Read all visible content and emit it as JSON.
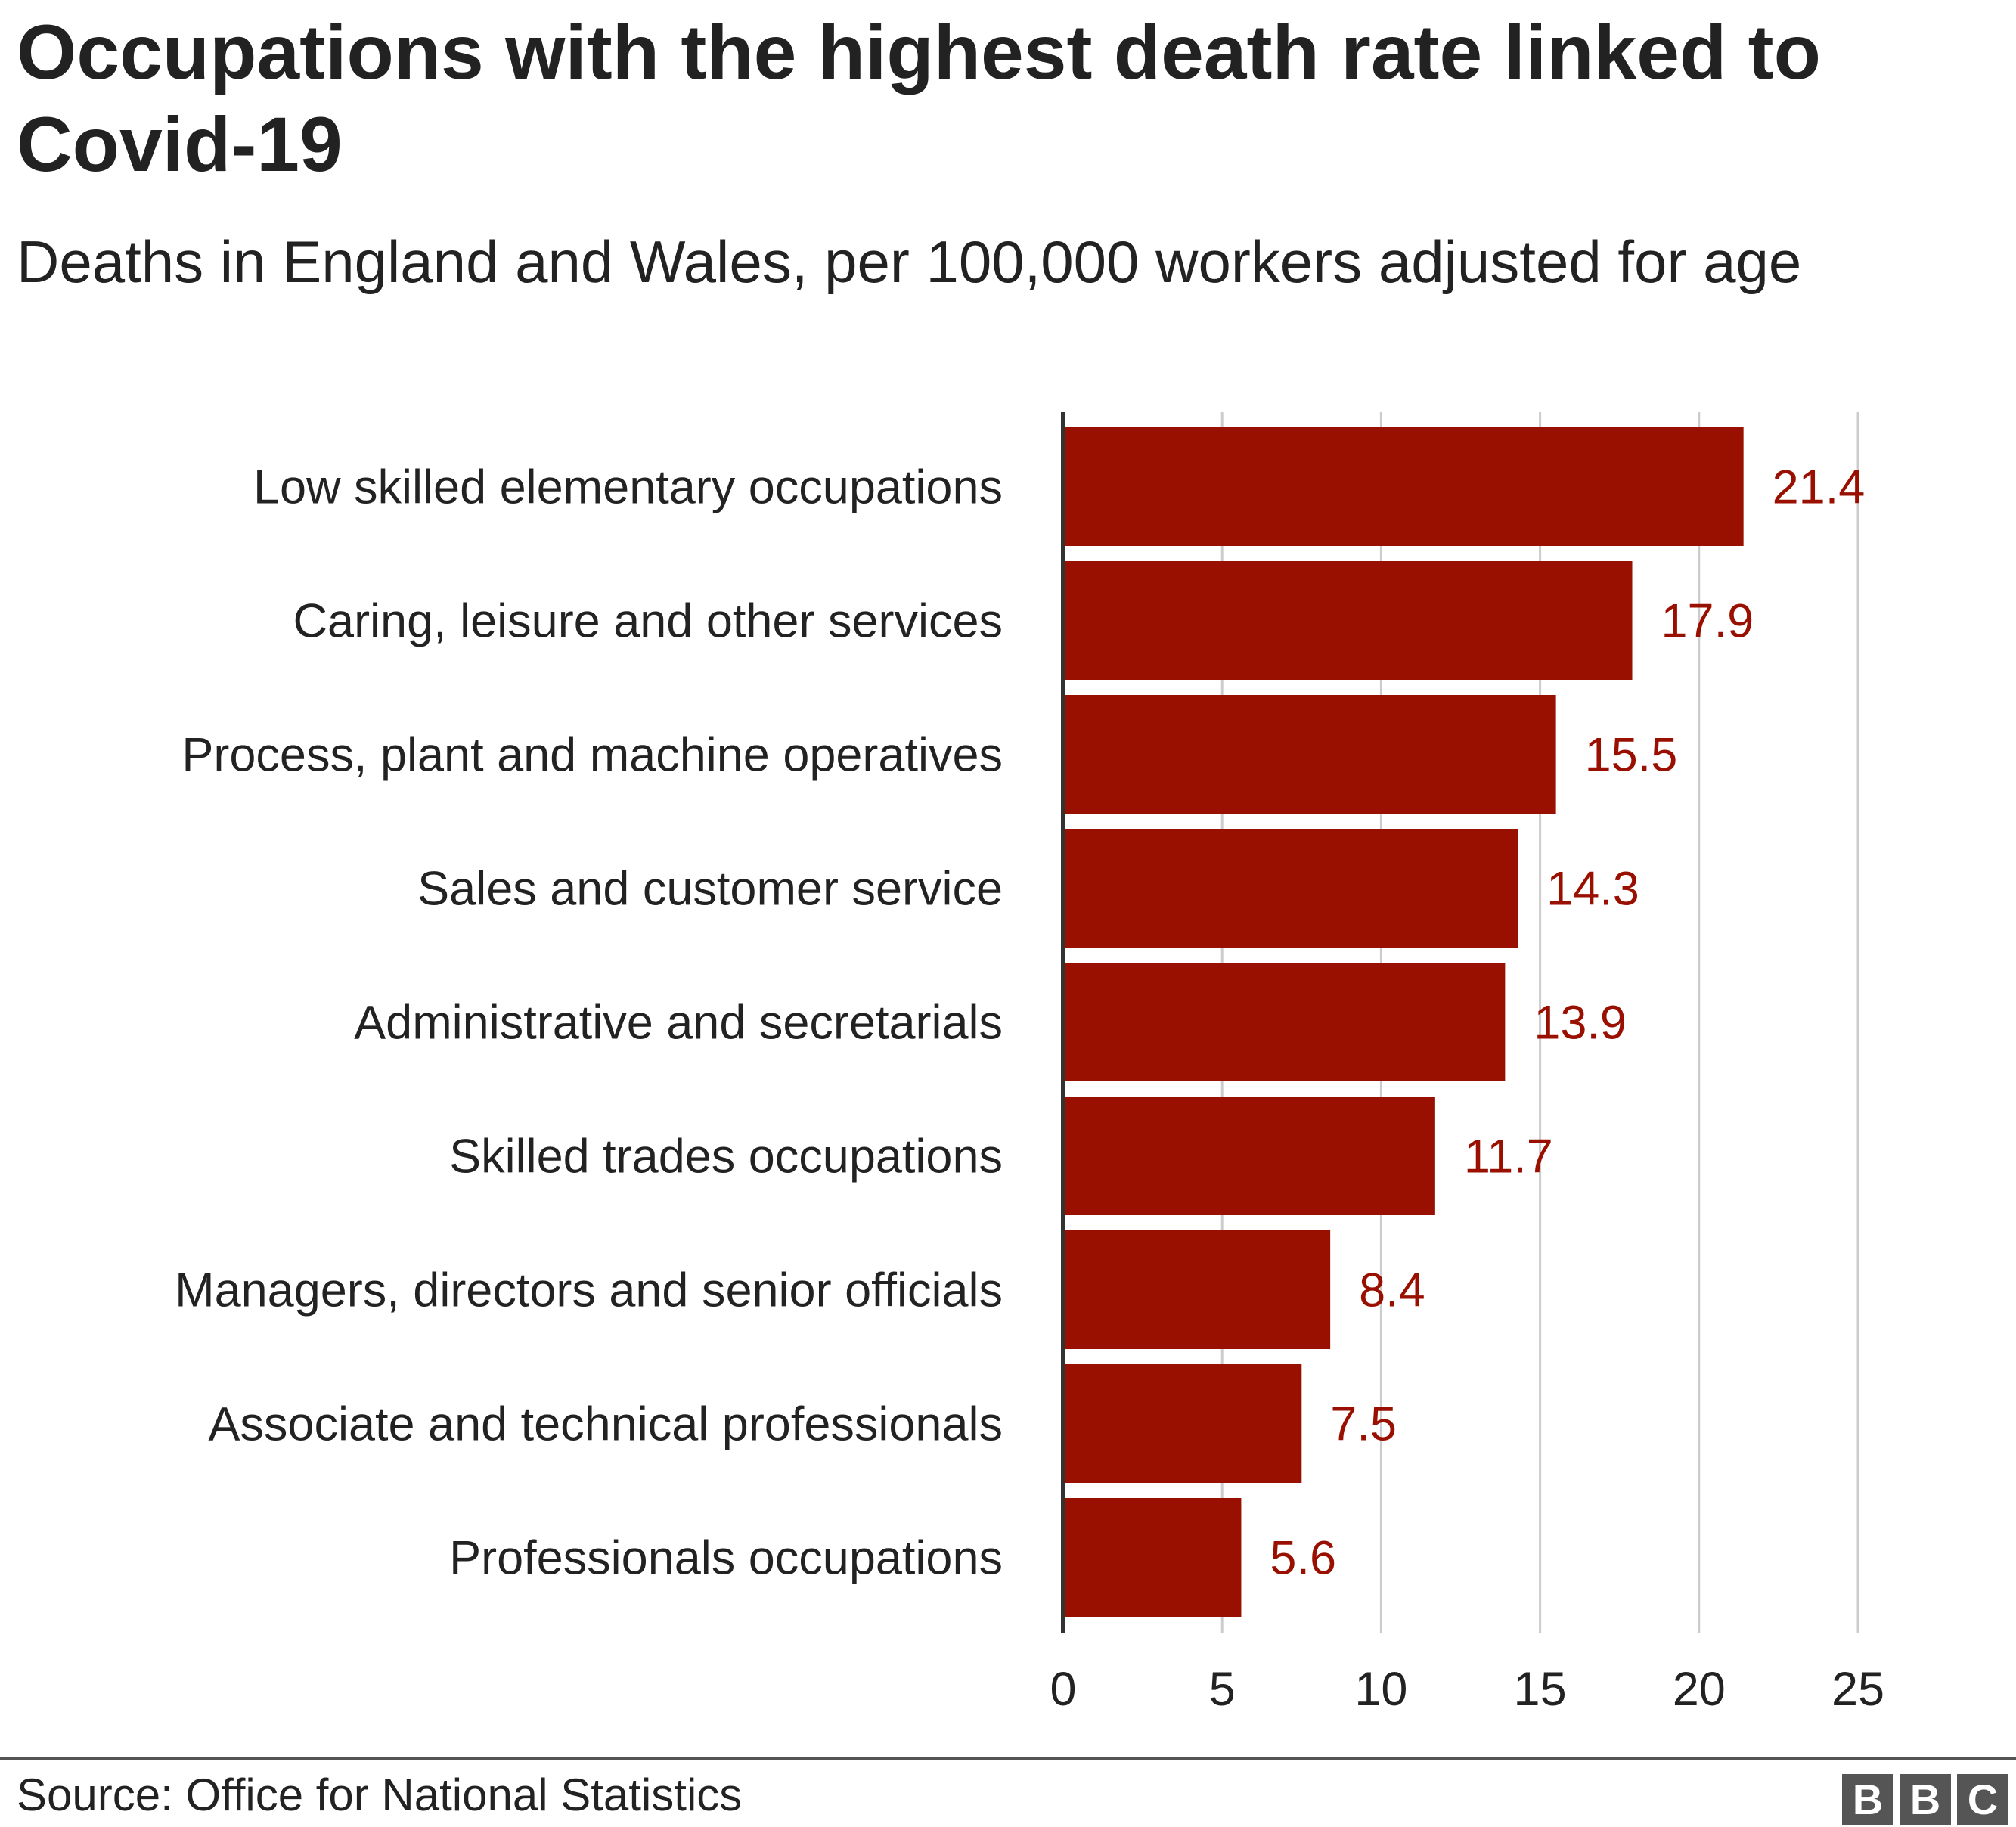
{
  "colors": {
    "bar": "#990f00",
    "value_label": "#990f00",
    "grid": "#cccccc",
    "axis": "#333333",
    "text": "#222222"
  },
  "source": "Source: Office for National Statistics",
  "logo": [
    "B",
    "B",
    "C"
  ],
  "chart_data": {
    "type": "bar",
    "orientation": "horizontal",
    "title": "Occupations with the highest death rate linked to Covid-19",
    "subtitle": "Deaths in England and Wales, per 100,000 workers adjusted for age",
    "categories": [
      "Low skilled elementary occupations",
      "Caring, leisure and other services",
      "Process, plant and machine operatives",
      "Sales and customer service",
      "Administrative and secretarials",
      "Skilled trades occupations",
      "Managers, directors and senior officials",
      "Associate and technical professionals",
      "Professionals occupations"
    ],
    "values": [
      21.4,
      17.9,
      15.5,
      14.3,
      13.9,
      11.7,
      8.4,
      7.5,
      5.6
    ],
    "value_labels": [
      "21.4",
      "17.9",
      "15.5",
      "14.3",
      "13.9",
      "11.7",
      "8.4",
      "7.5",
      "5.6"
    ],
    "xlim": [
      0,
      25
    ],
    "xticks": [
      0,
      5,
      10,
      15,
      20,
      25
    ],
    "xtick_labels": [
      "0",
      "5",
      "10",
      "15",
      "20",
      "25"
    ],
    "grid": true,
    "legend": "none"
  }
}
